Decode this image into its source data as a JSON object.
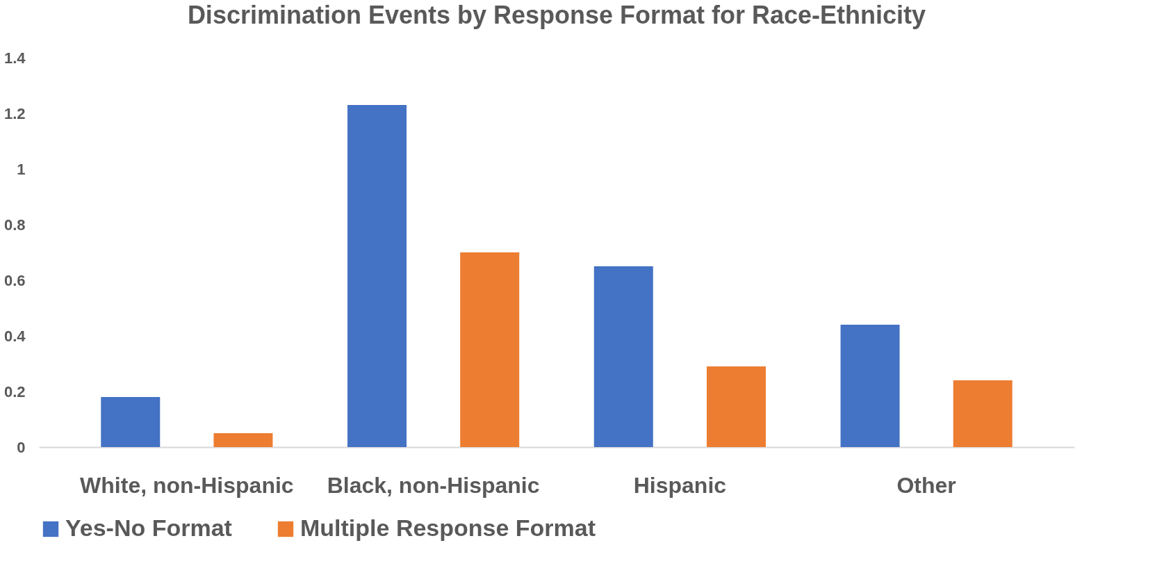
{
  "chart_data": {
    "type": "bar",
    "title": "Discrimination Events by Response Format for Race-Ethnicity",
    "categories": [
      "White, non-Hispanic",
      "Black, non-Hispanic",
      "Hispanic",
      "Other"
    ],
    "series": [
      {
        "name": "Yes-No Format",
        "color": "#4472c4",
        "values": [
          0.18,
          1.23,
          0.65,
          0.44
        ]
      },
      {
        "name": "Multiple Response Format",
        "color": "#ed7d31",
        "values": [
          0.05,
          0.7,
          0.29,
          0.24
        ]
      }
    ],
    "ylim": [
      0,
      1.4
    ],
    "yticks": [
      0,
      0.2,
      0.4,
      0.6,
      0.8,
      1,
      1.2,
      1.4
    ],
    "grid": false,
    "legend": "bottom"
  }
}
